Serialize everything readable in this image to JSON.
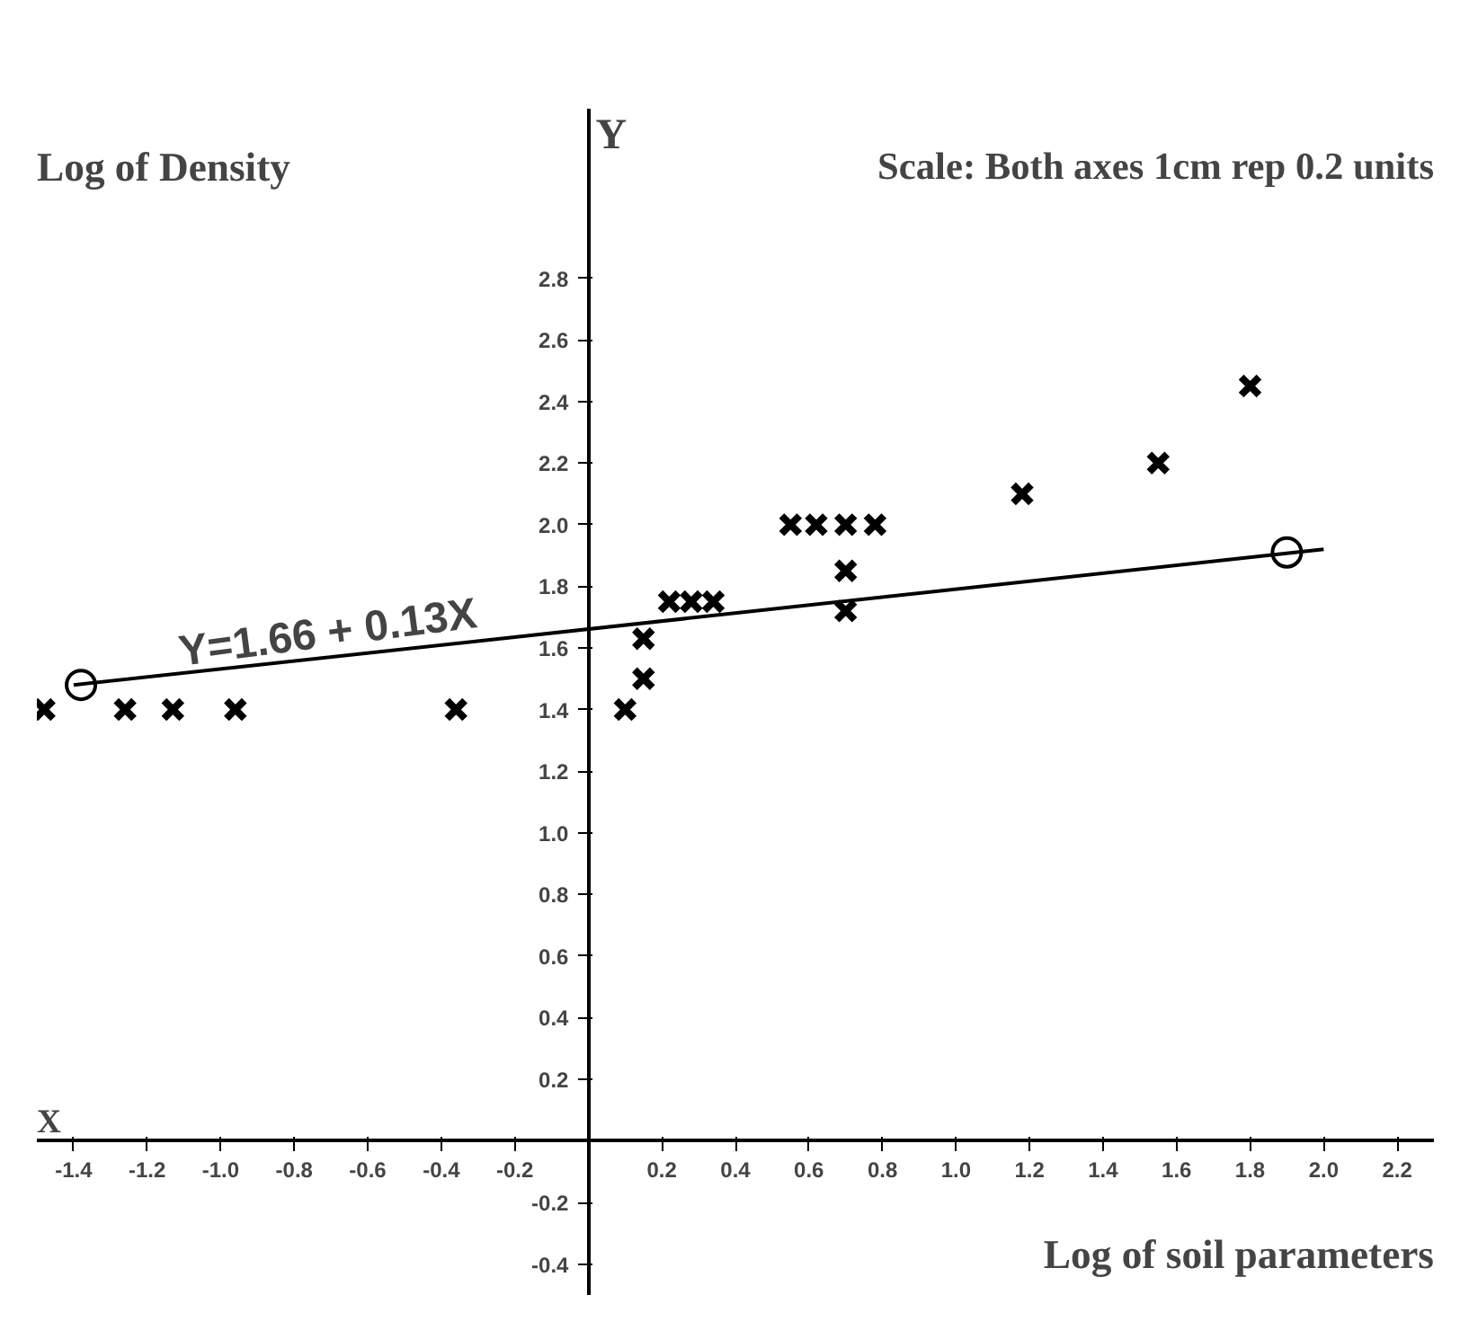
{
  "chart_data": {
    "type": "scatter",
    "title": "Scale: Both axes 1cm rep 0.2 units",
    "xlabel": "Log of soil parameters",
    "ylabel": "Log of Density",
    "annotations": [
      "Y",
      "X",
      {
        "text": "Y=1.66 + 0.13X",
        "x": -0.7,
        "y": 1.57
      }
    ],
    "xlim": [
      -1.5,
      2.3
    ],
    "ylim": [
      -0.5,
      3.35
    ],
    "xticks": [
      -1.4,
      -1.2,
      {
        "value": -1,
        "label": "-1.0"
      },
      -0.8,
      -0.6,
      -0.4,
      -0.2,
      0.2,
      0.4,
      0.6,
      0.8,
      {
        "value": 1,
        "label": "1.0"
      },
      1.2,
      1.4,
      1.6,
      1.8,
      {
        "value": 2,
        "label": "2.0"
      },
      2.2
    ],
    "yticks": [
      -0.4,
      -0.2,
      0.2,
      0.4,
      0.6,
      0.8,
      {
        "value": 1,
        "label": "1.0"
      },
      1.2,
      1.4,
      1.6,
      1.8,
      {
        "value": 2,
        "label": "2.0"
      },
      2.2,
      2.4,
      2.6,
      2.8
    ],
    "grid": false,
    "marker": "cross",
    "series": [
      {
        "color": "#000000",
        "x": [
          -1.48,
          -1.26,
          -1.13,
          -0.96,
          -0.36,
          0.1,
          0.15,
          0.15,
          0.22,
          0.28,
          0.34,
          0.55,
          0.62,
          0.7,
          0.78,
          0.7,
          0.7,
          1.18,
          1.55,
          1.8
        ],
        "values": [
          1.4,
          1.4,
          1.4,
          1.4,
          1.4,
          1.4,
          1.5,
          1.63,
          1.75,
          1.75,
          1.75,
          2.0,
          2.0,
          2.0,
          2.0,
          1.85,
          1.72,
          2.1,
          2.2,
          2.45
        ]
      },
      {
        "type": "line",
        "marker": "none",
        "color": "#000000",
        "x": [
          -1.4,
          2.0
        ],
        "values": [
          1.48,
          1.92
        ]
      },
      {
        "type": "scatter",
        "marker": "circle",
        "color": "#000000",
        "x": [
          -1.38,
          1.9
        ],
        "values": [
          1.48,
          1.91
        ]
      }
    ]
  }
}
